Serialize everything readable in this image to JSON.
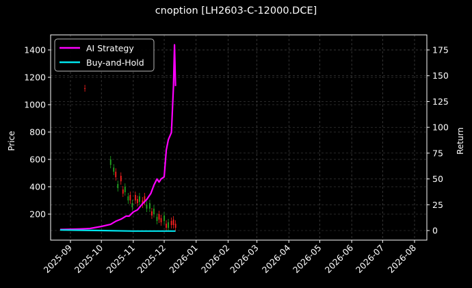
{
  "figure": {
    "title": "cnoption [LH2603-C-12000.DCE]",
    "background": "#000000"
  },
  "legend": {
    "items": [
      {
        "label": "AI Strategy",
        "color": "#ff00ff"
      },
      {
        "label": "Buy-and-Hold",
        "color": "#00e5ee"
      }
    ]
  },
  "axes": {
    "left_label": "Price",
    "right_label": "Return",
    "left_ticks": [
      200,
      400,
      600,
      800,
      1000,
      1200,
      1400
    ],
    "right_ticks": [
      0,
      25,
      50,
      75,
      100,
      125,
      150,
      175
    ],
    "x_ticks": [
      "2025-09",
      "2025-10",
      "2025-11",
      "2025-12",
      "2026-01",
      "2026-02",
      "2026-03",
      "2026-04",
      "2026-05",
      "2026-06",
      "2026-07",
      "2026-08"
    ]
  },
  "chart_data": {
    "type": "line",
    "title": "cnoption [LH2603-C-12000.DCE]",
    "xlabel": "",
    "ylabel": "Price",
    "ylabel_right": "Return",
    "ylim": [
      40,
      1500
    ],
    "ylim_right": [
      -6,
      185
    ],
    "xlim": [
      "2025-08-22",
      "2026-08-15"
    ],
    "grid": true,
    "legend_position": "upper left",
    "x_tick_labels": [
      "2025-09",
      "2025-10",
      "2025-11",
      "2025-12",
      "2026-01",
      "2026-02",
      "2026-03",
      "2026-04",
      "2026-05",
      "2026-06",
      "2026-07",
      "2026-08"
    ],
    "series": [
      {
        "name": "AI Strategy",
        "axis": "right",
        "color": "#ff00ff",
        "x": [
          "2025-08-22",
          "2025-09-10",
          "2025-09-20",
          "2025-10-01",
          "2025-10-10",
          "2025-10-15",
          "2025-10-20",
          "2025-10-25",
          "2025-10-28",
          "2025-11-01",
          "2025-11-05",
          "2025-11-10",
          "2025-11-14",
          "2025-11-18",
          "2025-11-21",
          "2025-11-24",
          "2025-11-26",
          "2025-11-28",
          "2025-12-01",
          "2025-12-03",
          "2025-12-05",
          "2025-12-08",
          "2025-12-10",
          "2025-12-11",
          "2025-12-12"
        ],
        "values": [
          1,
          1.5,
          2,
          4,
          6,
          9,
          11,
          14,
          14,
          18,
          20,
          26,
          30,
          36,
          44,
          50,
          47,
          50,
          52,
          78,
          88,
          95,
          140,
          180,
          140
        ]
      },
      {
        "name": "Buy-and-Hold",
        "axis": "right",
        "color": "#00e5ee",
        "x": [
          "2025-08-22",
          "2025-10-01",
          "2025-11-01",
          "2025-12-12"
        ],
        "values": [
          0.5,
          0,
          -0.5,
          -0.5
        ]
      },
      {
        "name": "Price (candlestick)",
        "axis": "left",
        "type": "candlestick",
        "up_color": "#ff2020",
        "down_color": "#22aa22",
        "x": [
          "2025-09-15",
          "2025-10-10",
          "2025-10-13",
          "2025-10-15",
          "2025-10-17",
          "2025-10-20",
          "2025-10-22",
          "2025-10-24",
          "2025-10-27",
          "2025-10-29",
          "2025-10-31",
          "2025-11-03",
          "2025-11-05",
          "2025-11-07",
          "2025-11-10",
          "2025-11-12",
          "2025-11-14",
          "2025-11-17",
          "2025-11-19",
          "2025-11-21",
          "2025-11-24",
          "2025-11-26",
          "2025-11-28",
          "2025-12-01",
          "2025-12-03",
          "2025-12-05",
          "2025-12-08",
          "2025-12-10",
          "2025-12-12"
        ],
        "close": [
          1120,
          560,
          540,
          470,
          420,
          440,
          380,
          360,
          330,
          300,
          280,
          300,
          310,
          290,
          300,
          290,
          270,
          240,
          220,
          200,
          180,
          160,
          170,
          150,
          130,
          100,
          150,
          120,
          130
        ]
      }
    ]
  }
}
